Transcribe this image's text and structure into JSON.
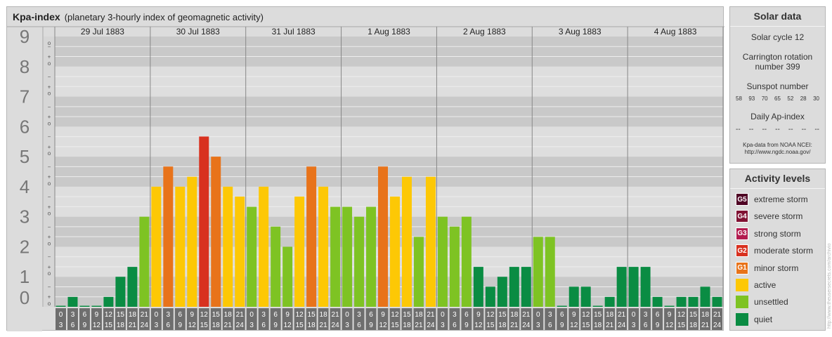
{
  "header": {
    "title": "Kpa-index",
    "subtitle": "(planetary 3-hourly index of geomagnetic activity)"
  },
  "chart_data": {
    "type": "bar",
    "ylim": [
      0,
      9
    ],
    "y_ticks": [
      "0",
      "1",
      "2",
      "3",
      "4",
      "5",
      "6",
      "7",
      "8",
      "9"
    ],
    "minor_ticks": [
      "o",
      "+",
      "−"
    ],
    "days": [
      "29 Jul 1883",
      "30 Jul 1883",
      "31 Jul 1883",
      "1 Aug 1883",
      "2 Aug 1883",
      "3 Aug 1883",
      "4 Aug 1883"
    ],
    "hour_labels_top": [
      "0",
      "3",
      "6",
      "9",
      "12",
      "15",
      "18",
      "21"
    ],
    "hour_labels_bottom": [
      "3",
      "6",
      "9",
      "12",
      "15",
      "18",
      "21",
      "24"
    ],
    "values": [
      0,
      0.33,
      0,
      0,
      0.33,
      1,
      1.33,
      3,
      4,
      4.67,
      4,
      4.33,
      5.67,
      5,
      4,
      3.67,
      3.33,
      4,
      2.67,
      2,
      3.67,
      4.67,
      4,
      3.33,
      3.33,
      3,
      3.33,
      4.67,
      3.67,
      4.33,
      2.33,
      4.33,
      3,
      2.67,
      3,
      1.33,
      0.67,
      1,
      1.33,
      1.33,
      2.33,
      2.33,
      0,
      0.67,
      0.67,
      0,
      0.33,
      1.33,
      1.33,
      1.33,
      0.33,
      0,
      0.33,
      0.33,
      0.67,
      0.33
    ],
    "colors": {
      "quiet": "#0a8c43",
      "unsettled": "#7ec323",
      "active": "#fdc805",
      "G1": "#e8731a",
      "G2": "#d8311f",
      "G3": "#b31c4f",
      "G4": "#801233",
      "G5": "#4f0424"
    }
  },
  "solar_data": {
    "title": "Solar data",
    "solar_cycle": "Solar cycle 12",
    "carrington_line1": "Carrington rotation",
    "carrington_line2": "number 399",
    "sunspot_title": "Sunspot number",
    "sunspot_values": [
      "58",
      "93",
      "70",
      "65",
      "52",
      "28",
      "30"
    ],
    "ap_title": "Daily Ap-index",
    "ap_values": [
      "--",
      "--",
      "--",
      "--",
      "--",
      "--",
      "--"
    ],
    "source_line1": "Kpa-data from NOAA NCEI:",
    "source_line2": "http://www.ngdc.noaa.gov/"
  },
  "activity_levels": {
    "title": "Activity levels",
    "items": [
      {
        "badge": "G5",
        "label": "extreme storm",
        "color": "#4f0424"
      },
      {
        "badge": "G4",
        "label": "severe storm",
        "color": "#801233"
      },
      {
        "badge": "G3",
        "label": "strong storm",
        "color": "#b31c4f"
      },
      {
        "badge": "G2",
        "label": "moderate storm",
        "color": "#d8311f"
      },
      {
        "badge": "G1",
        "label": "minor storm",
        "color": "#e8731a"
      },
      {
        "badge": "",
        "label": "active",
        "color": "#fdc805"
      },
      {
        "badge": "",
        "label": "unsettled",
        "color": "#7ec323"
      },
      {
        "badge": "",
        "label": "quiet",
        "color": "#0a8c43"
      }
    ]
  },
  "watermark": "http://www.theusersecrets.com/archivio"
}
